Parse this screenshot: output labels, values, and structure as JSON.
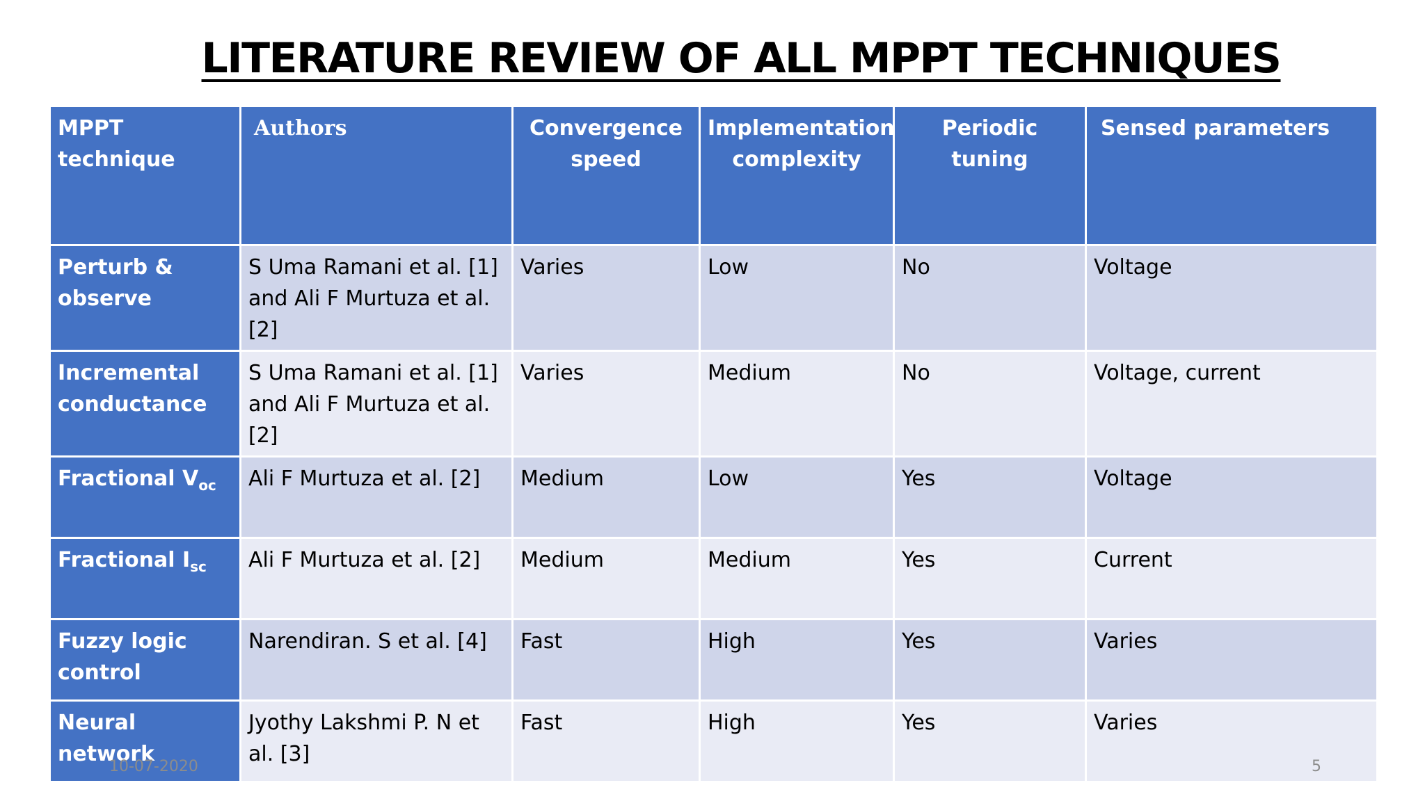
{
  "title": "LITERATURE REVIEW OF ALL MPPT TECHNIQUES",
  "table": {
    "headers": {
      "technique": "MPPT technique",
      "authors": "Authors",
      "convergence": "Convergence speed",
      "complexity": "Implementation complexity",
      "tuning": "Periodic tuning",
      "sensed": "Sensed parameters"
    },
    "rows": [
      {
        "technique": "Perturb & observe",
        "authors": "S Uma Ramani et al. [1] and Ali F Murtuza et al. [2]",
        "convergence": "Varies",
        "complexity": "Low",
        "tuning": "No",
        "sensed": "Voltage"
      },
      {
        "technique": "Incremental conductance",
        "authors": "S Uma Ramani et al. [1] and Ali F Murtuza et al. [2]",
        "convergence": "Varies",
        "complexity": "Medium",
        "tuning": "No",
        "sensed": "Voltage, current"
      },
      {
        "technique": "Fractional V",
        "technique_sub": "oc",
        "authors": "Ali F Murtuza et al. [2]",
        "convergence": "Medium",
        "complexity": "Low",
        "tuning": "Yes",
        "sensed": "Voltage"
      },
      {
        "technique": "Fractional I",
        "technique_sub": "sc",
        "authors": "Ali F Murtuza et al. [2]",
        "convergence": "Medium",
        "complexity": "Medium",
        "tuning": "Yes",
        "sensed": "Current"
      },
      {
        "technique": "Fuzzy logic control",
        "authors": "Narendiran. S et al. [4]",
        "convergence": "Fast",
        "complexity": "High",
        "tuning": "Yes",
        "sensed": "Varies"
      },
      {
        "technique": "Neural network",
        "authors": "Jyothy Lakshmi P. N et al. [3]",
        "convergence": "Fast",
        "complexity": "High",
        "tuning": "Yes",
        "sensed": "Varies"
      }
    ]
  },
  "footer": {
    "date": "10-07-2020",
    "page": "5"
  },
  "colors": {
    "header_bg": "#4472c4",
    "row_odd_bg": "#cfd5ea",
    "row_even_bg": "#e9ebf5"
  }
}
